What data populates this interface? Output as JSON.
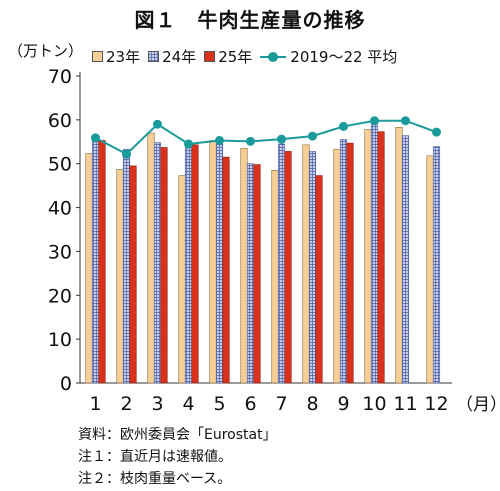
{
  "title": "図１　牛肉生産量の推移",
  "y_unit": "（万トン）",
  "x_unit": "（月）",
  "notes": [
    "資料：欧州委員会「Eurostat」",
    "注１：直近月は速報値。",
    "注２：枝肉重量ベース。"
  ],
  "colors": {
    "s23": "#f7cf96",
    "s24": "#c8cfe6",
    "s24_hatch": "#4a5fa8",
    "s25": "#d8321c",
    "avg": "#1a9a9a"
  },
  "chart_data": {
    "type": "bar",
    "categories": [
      "1",
      "2",
      "3",
      "4",
      "5",
      "6",
      "7",
      "8",
      "9",
      "10",
      "11",
      "12"
    ],
    "ylim": [
      0,
      70
    ],
    "yticks": [
      0,
      10,
      20,
      30,
      40,
      50,
      60,
      70
    ],
    "grid": false,
    "legend_position": "top",
    "series": [
      {
        "name": "23年",
        "type": "bar",
        "values": [
          52.3,
          48.7,
          57.0,
          47.3,
          55.3,
          53.5,
          48.5,
          54.3,
          53.3,
          57.8,
          58.3,
          51.8
        ]
      },
      {
        "name": "24年",
        "type": "bar",
        "values": [
          55.5,
          53.3,
          54.8,
          54.5,
          55.5,
          50.0,
          54.5,
          52.8,
          55.5,
          59.2,
          56.4,
          53.9
        ]
      },
      {
        "name": "25年",
        "type": "bar",
        "values": [
          55.3,
          49.5,
          53.7,
          54.3,
          51.5,
          49.8,
          52.8,
          47.3,
          54.7,
          57.3,
          null,
          null
        ]
      },
      {
        "name": "2019～22 平均",
        "type": "line",
        "values": [
          55.9,
          52.2,
          59.0,
          54.5,
          55.3,
          55.1,
          55.6,
          56.3,
          58.5,
          59.8,
          59.8,
          57.2
        ]
      }
    ]
  }
}
